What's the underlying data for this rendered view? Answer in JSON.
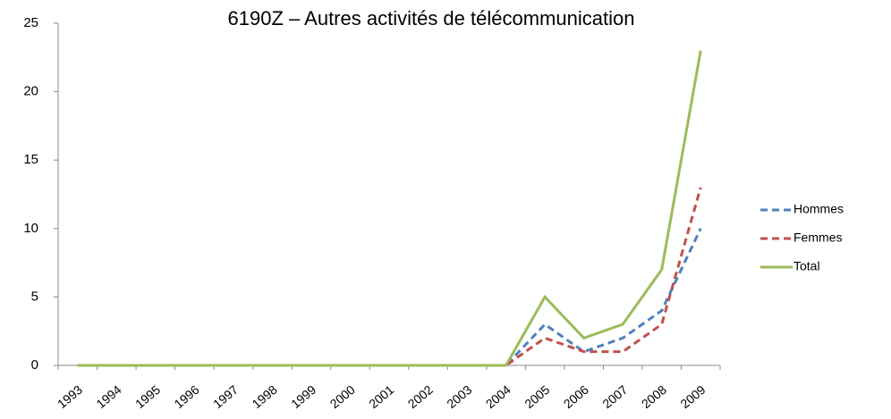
{
  "chart_data": {
    "type": "line",
    "title": "6190Z – Autres activités de télécommunication",
    "categories": [
      "1993",
      "1994",
      "1995",
      "1996",
      "1997",
      "1998",
      "1999",
      "2000",
      "2001",
      "2002",
      "2003",
      "2004",
      "2005",
      "2006",
      "2007",
      "2008",
      "2009"
    ],
    "series": [
      {
        "name": "Hommes",
        "color": "#4f81bd",
        "dashed": true,
        "values": [
          0,
          0,
          0,
          0,
          0,
          0,
          0,
          0,
          0,
          0,
          0,
          0,
          3,
          1,
          2,
          4,
          10
        ]
      },
      {
        "name": "Femmes",
        "color": "#c0504d",
        "dashed": true,
        "values": [
          0,
          0,
          0,
          0,
          0,
          0,
          0,
          0,
          0,
          0,
          0,
          0,
          2,
          1,
          1,
          3,
          13
        ]
      },
      {
        "name": "Total",
        "color": "#9bbb59",
        "dashed": false,
        "values": [
          0,
          0,
          0,
          0,
          0,
          0,
          0,
          0,
          0,
          0,
          0,
          0,
          5,
          2,
          3,
          7,
          23
        ]
      }
    ],
    "ylim": [
      0,
      25
    ],
    "yticks": [
      0,
      5,
      10,
      15,
      20,
      25
    ],
    "grid": false,
    "legend": "right"
  }
}
